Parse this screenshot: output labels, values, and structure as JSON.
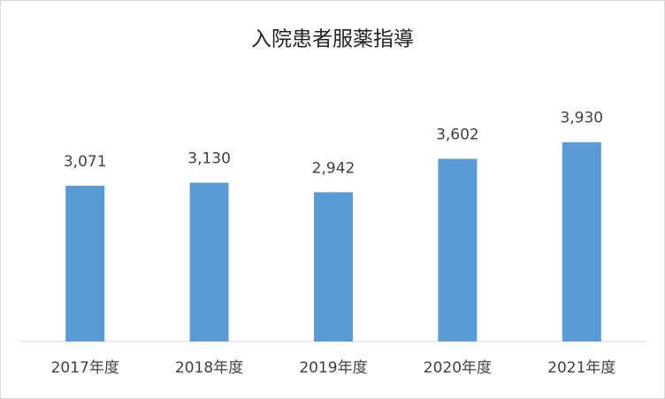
{
  "chart_data": {
    "type": "bar",
    "title": "入院患者服薬指導",
    "categories": [
      "2017年度",
      "2018年度",
      "2019年度",
      "2020年度",
      "2021年度"
    ],
    "values": [
      3071,
      3130,
      2942,
      3602,
      3930
    ],
    "value_labels": [
      "3,071",
      "3,130",
      "2,942",
      "3,602",
      "3,930"
    ],
    "color": "#5b9bd5",
    "ylim": [
      0,
      4500
    ]
  }
}
